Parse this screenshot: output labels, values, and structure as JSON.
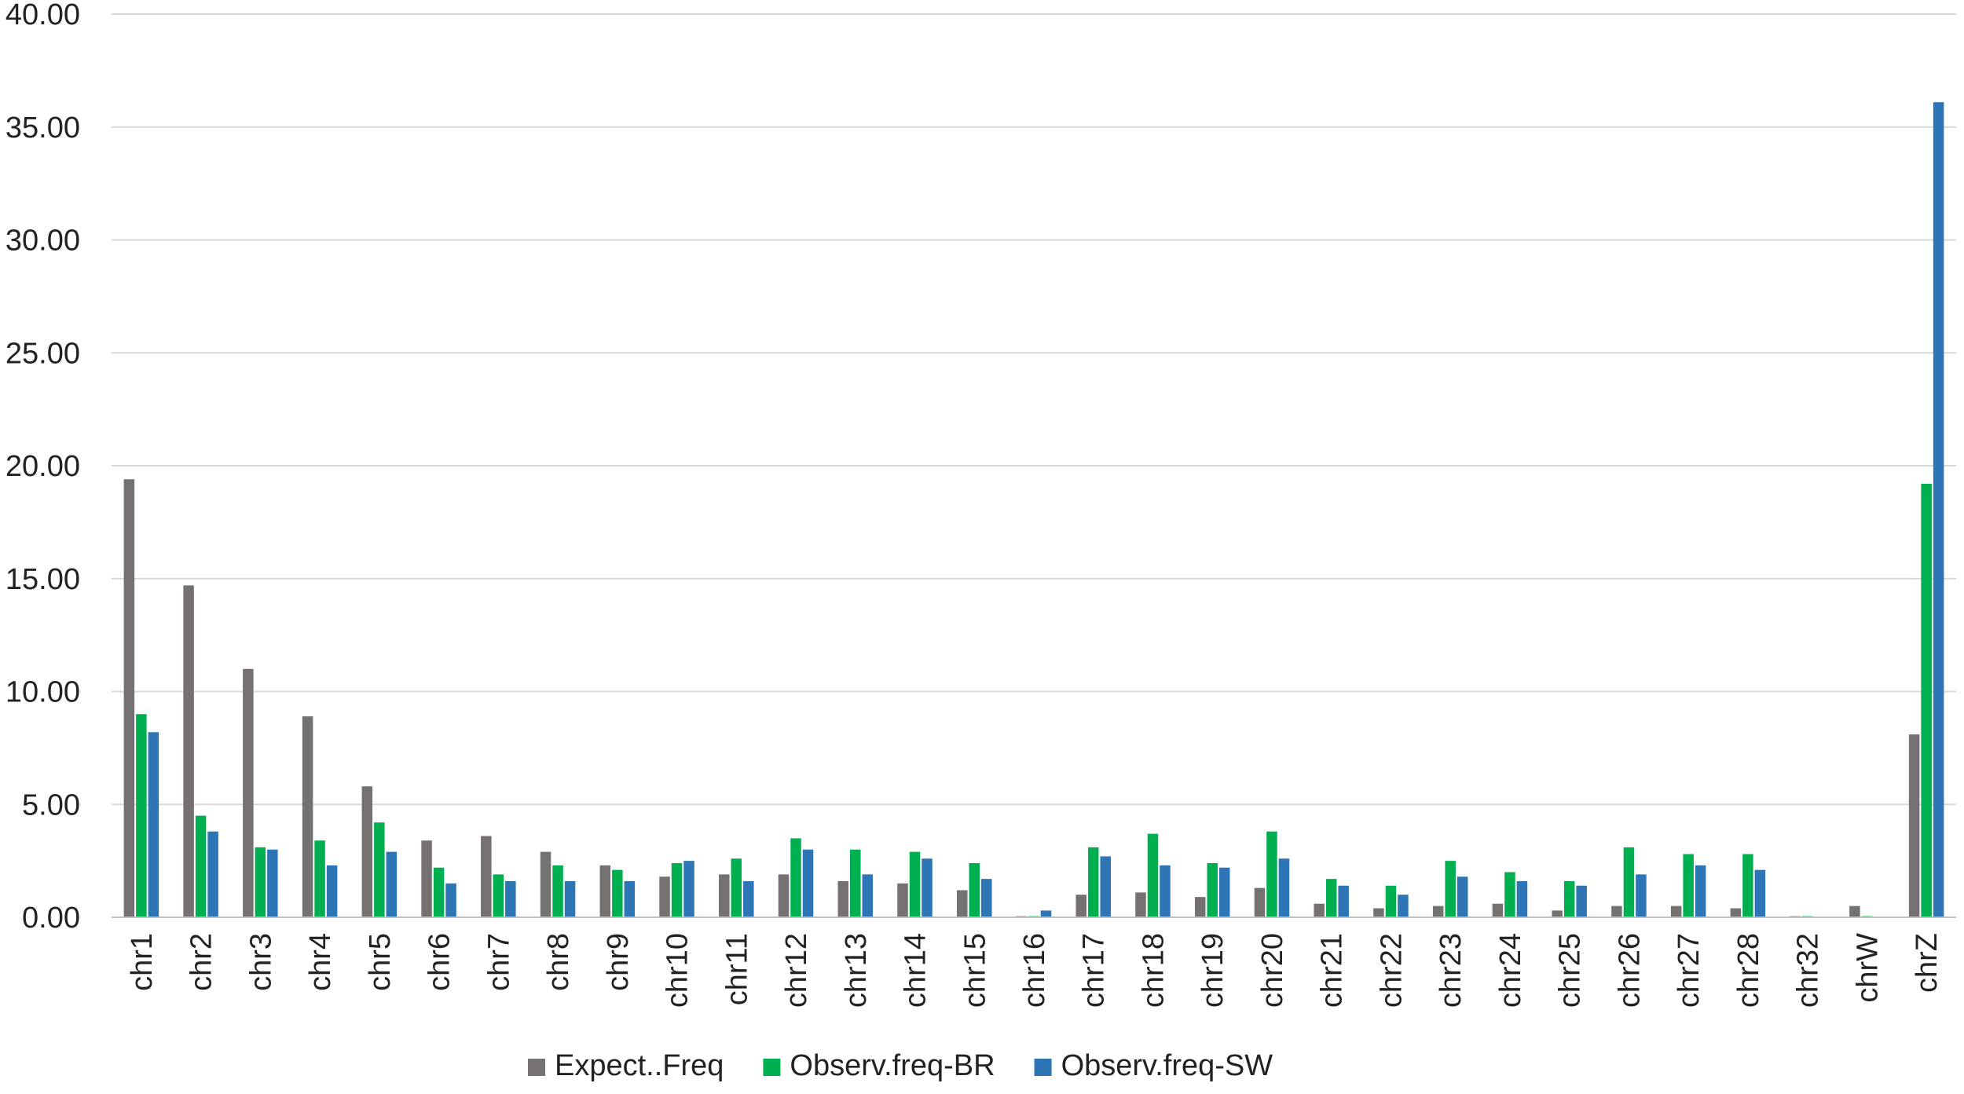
{
  "chart_data": {
    "type": "bar",
    "title": "",
    "xlabel": "",
    "ylabel": "",
    "ylim": [
      0,
      40
    ],
    "yticks": [
      "0.00",
      "5.00",
      "10.00",
      "15.00",
      "20.00",
      "25.00",
      "30.00",
      "35.00",
      "40.00"
    ],
    "grid": true,
    "legend_position": "bottom",
    "categories": [
      "chr1",
      "chr2",
      "chr3",
      "chr4",
      "chr5",
      "chr6",
      "chr7",
      "chr8",
      "chr9",
      "chr10",
      "chr11",
      "chr12",
      "chr13",
      "chr14",
      "chr15",
      "chr16",
      "chr17",
      "chr18",
      "chr19",
      "chr20",
      "chr21",
      "chr22",
      "chr23",
      "chr24",
      "chr25",
      "chr26",
      "chr27",
      "chr28",
      "chr32",
      "chrW",
      "chrZ"
    ],
    "series": [
      {
        "name": "Expect..Freq",
        "color": "#767171",
        "values": [
          19.4,
          14.7,
          11.0,
          8.9,
          5.8,
          3.4,
          3.6,
          2.9,
          2.3,
          1.8,
          1.9,
          1.9,
          1.6,
          1.5,
          1.2,
          0.05,
          1.0,
          1.1,
          0.9,
          1.3,
          0.6,
          0.4,
          0.5,
          0.6,
          0.3,
          0.5,
          0.5,
          0.4,
          0.05,
          0.5,
          8.1
        ]
      },
      {
        "name": "Observ.freq-BR",
        "color": "#00B050",
        "values": [
          9.0,
          4.5,
          3.1,
          3.4,
          4.2,
          2.2,
          1.9,
          2.3,
          2.1,
          2.4,
          2.6,
          3.5,
          3.0,
          2.9,
          2.4,
          0.05,
          3.1,
          3.7,
          2.4,
          3.8,
          1.7,
          1.4,
          2.5,
          2.0,
          1.6,
          3.1,
          2.8,
          2.8,
          0.05,
          0.05,
          19.2
        ]
      },
      {
        "name": "Observ.freq-SW",
        "color": "#2E75B6",
        "values": [
          8.2,
          3.8,
          3.0,
          2.3,
          2.9,
          1.5,
          1.6,
          1.6,
          1.6,
          2.5,
          1.6,
          3.0,
          1.9,
          2.6,
          1.7,
          0.3,
          2.7,
          2.3,
          2.2,
          2.6,
          1.4,
          1.0,
          1.8,
          1.6,
          1.4,
          1.9,
          2.3,
          2.1,
          0.0,
          0.0,
          36.1
        ]
      }
    ]
  }
}
